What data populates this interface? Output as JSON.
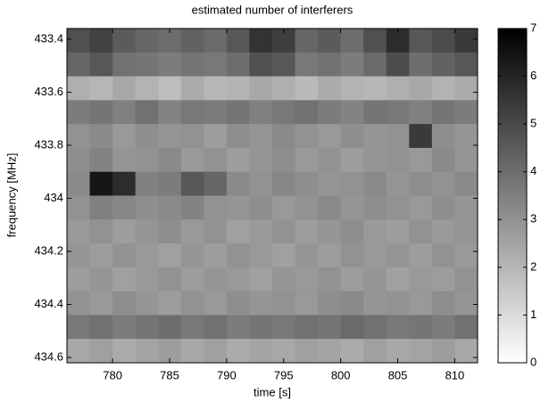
{
  "chart_data": {
    "type": "heatmap",
    "title": "estimated number of interferers",
    "xlabel": "time [s]",
    "ylabel": "frequency [MHz]",
    "xbins": [
      776,
      778,
      780,
      782,
      784,
      786,
      788,
      790,
      792,
      794,
      796,
      798,
      800,
      802,
      804,
      806,
      808,
      810,
      812
    ],
    "ybins": [
      433.36,
      433.45,
      433.54,
      433.63,
      433.72,
      433.81,
      433.9,
      433.99,
      434.08,
      434.17,
      434.26,
      434.35,
      434.44,
      434.53,
      434.62
    ],
    "xlim": [
      776,
      812
    ],
    "ylim": [
      433.36,
      434.62
    ],
    "y_reverse": true,
    "xticks": [
      780,
      785,
      790,
      795,
      800,
      805,
      810
    ],
    "yticks": [
      433.4,
      433.6,
      433.8,
      434,
      434.2,
      434.4,
      434.6
    ],
    "clim": [
      0,
      7
    ],
    "cticks": [
      0,
      1,
      2,
      3,
      4,
      5,
      6,
      7
    ],
    "colormap": "reversed-gray",
    "values": [
      [
        4.8,
        5.2,
        4.5,
        4.2,
        4.0,
        4.3,
        4.1,
        4.6,
        5.6,
        5.3,
        4.2,
        4.5,
        4.0,
        4.8,
        5.8,
        4.6,
        4.9,
        5.4
      ],
      [
        4.2,
        4.6,
        3.9,
        3.8,
        3.6,
        3.8,
        3.7,
        4.0,
        4.8,
        4.6,
        3.7,
        3.9,
        3.6,
        4.1,
        4.9,
        4.0,
        4.3,
        4.6
      ],
      [
        2.2,
        2.0,
        2.4,
        2.1,
        1.8,
        2.3,
        2.0,
        2.1,
        2.4,
        2.2,
        1.9,
        2.3,
        2.1,
        2.0,
        2.2,
        2.4,
        2.1,
        2.3
      ],
      [
        3.6,
        3.8,
        3.5,
        3.9,
        3.4,
        3.7,
        3.6,
        3.8,
        3.5,
        3.7,
        3.9,
        3.6,
        3.4,
        3.8,
        3.7,
        3.5,
        3.8,
        3.6
      ],
      [
        3.0,
        3.2,
        2.8,
        3.1,
        2.9,
        3.0,
        2.7,
        3.1,
        2.9,
        3.2,
        3.0,
        2.8,
        3.1,
        2.9,
        3.0,
        5.4,
        3.1,
        2.9
      ],
      [
        3.1,
        3.4,
        2.9,
        3.0,
        3.2,
        2.8,
        3.0,
        2.7,
        2.9,
        3.1,
        2.8,
        3.0,
        2.7,
        2.9,
        3.0,
        2.8,
        3.2,
        2.9
      ],
      [
        3.2,
        6.4,
        5.8,
        3.5,
        3.6,
        4.6,
        4.2,
        3.2,
        3.0,
        3.3,
        3.1,
        2.9,
        3.0,
        3.2,
        2.9,
        3.1,
        3.0,
        3.2
      ],
      [
        3.0,
        3.5,
        3.3,
        3.1,
        3.2,
        3.4,
        3.0,
        2.9,
        3.1,
        2.8,
        3.0,
        3.2,
        2.9,
        3.1,
        3.0,
        2.8,
        3.1,
        2.9
      ],
      [
        2.8,
        3.0,
        2.7,
        2.9,
        3.1,
        2.8,
        3.0,
        2.6,
        2.8,
        3.0,
        2.7,
        2.9,
        3.1,
        2.8,
        2.7,
        3.0,
        2.8,
        2.9
      ],
      [
        2.9,
        2.7,
        3.0,
        2.8,
        2.6,
        2.9,
        2.7,
        3.0,
        2.8,
        2.6,
        2.9,
        2.7,
        3.0,
        2.8,
        2.9,
        2.7,
        3.0,
        2.8
      ],
      [
        2.7,
        2.9,
        2.6,
        2.8,
        3.0,
        2.7,
        2.9,
        2.8,
        2.6,
        2.9,
        2.8,
        3.0,
        2.7,
        2.9,
        2.6,
        2.8,
        2.7,
        3.0
      ],
      [
        3.0,
        2.8,
        3.1,
        2.9,
        2.7,
        3.0,
        2.8,
        3.1,
        2.9,
        3.0,
        2.8,
        3.1,
        3.2,
        2.9,
        3.0,
        2.8,
        3.1,
        2.9
      ],
      [
        3.7,
        3.9,
        3.6,
        3.8,
        4.0,
        3.7,
        3.9,
        3.6,
        3.8,
        3.7,
        3.9,
        3.8,
        4.1,
        3.9,
        3.7,
        3.8,
        3.6,
        3.9
      ],
      [
        2.4,
        2.6,
        2.3,
        2.5,
        2.7,
        2.4,
        2.6,
        2.3,
        2.5,
        2.4,
        2.6,
        2.5,
        2.3,
        2.6,
        2.4,
        2.5,
        2.7,
        2.4
      ]
    ]
  }
}
